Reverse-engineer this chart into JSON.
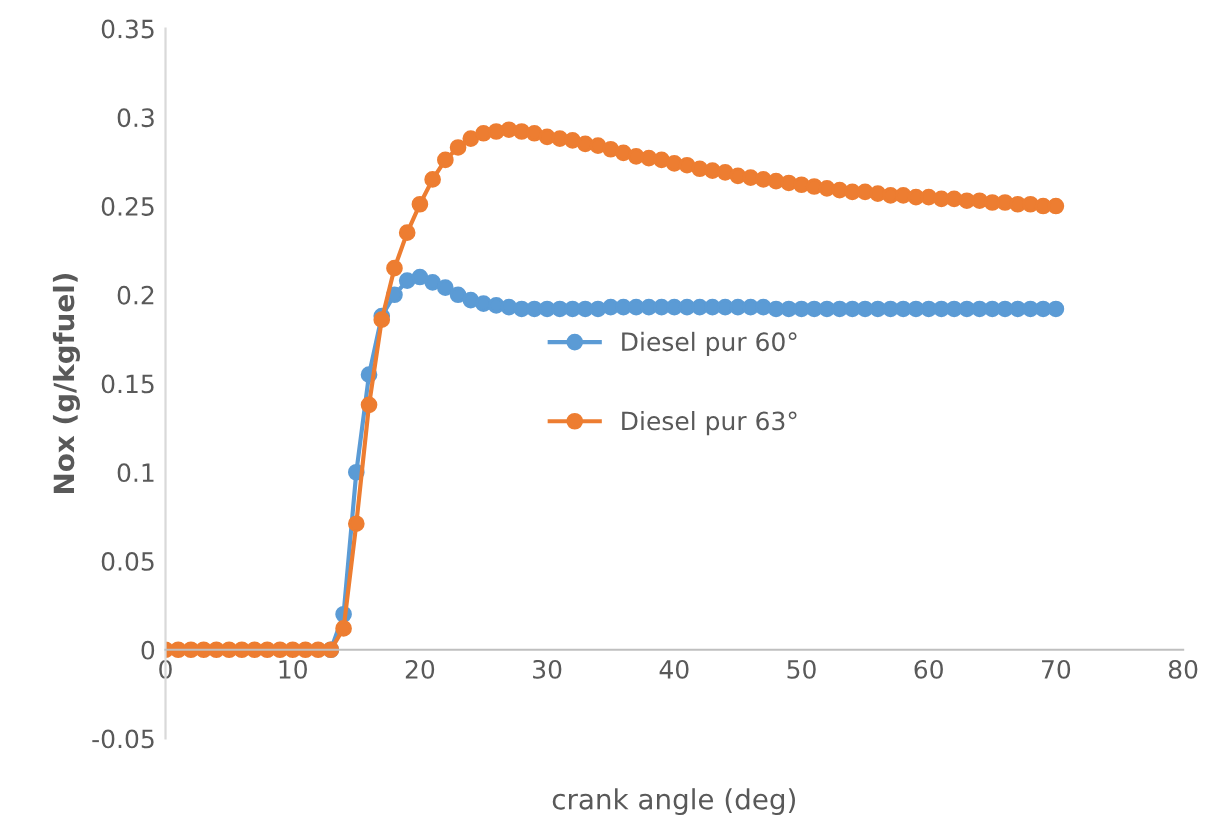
{
  "chart_data": {
    "type": "line",
    "xlabel": "crank angle (deg)",
    "ylabel": "Nox (g/kgfuel)",
    "x": [
      0,
      1,
      2,
      3,
      4,
      5,
      6,
      7,
      8,
      9,
      10,
      11,
      12,
      13,
      14,
      15,
      16,
      17,
      18,
      19,
      20,
      21,
      22,
      23,
      24,
      25,
      26,
      27,
      28,
      29,
      30,
      31,
      32,
      33,
      34,
      35,
      36,
      37,
      38,
      39,
      40,
      41,
      42,
      43,
      44,
      45,
      46,
      47,
      48,
      49,
      50,
      51,
      52,
      53,
      54,
      55,
      56,
      57,
      58,
      59,
      60,
      61,
      62,
      63,
      64,
      65,
      66,
      67,
      68,
      69,
      70
    ],
    "series": [
      {
        "name": "Diesel pur 60°",
        "color": "#5b9bd5",
        "values": [
          null,
          null,
          null,
          null,
          null,
          null,
          null,
          null,
          null,
          null,
          null,
          null,
          null,
          0,
          0.02,
          0.1,
          0.155,
          0.188,
          0.2,
          0.208,
          0.21,
          0.207,
          0.204,
          0.2,
          0.197,
          0.195,
          0.194,
          0.193,
          0.192,
          0.192,
          0.192,
          0.192,
          0.192,
          0.192,
          0.192,
          0.193,
          0.193,
          0.193,
          0.193,
          0.193,
          0.193,
          0.193,
          0.193,
          0.193,
          0.193,
          0.193,
          0.193,
          0.193,
          0.192,
          0.192,
          0.192,
          0.192,
          0.192,
          0.192,
          0.192,
          0.192,
          0.192,
          0.192,
          0.192,
          0.192,
          0.192,
          0.192,
          0.192,
          0.192,
          0.192,
          0.192,
          0.192,
          0.192,
          0.192,
          0.192,
          0.192
        ]
      },
      {
        "name": "Diesel pur 63°",
        "color": "#ed7d31",
        "values": [
          0,
          0,
          0,
          0,
          0,
          0,
          0,
          0,
          0,
          0,
          0,
          0,
          0,
          0,
          0.012,
          0.071,
          0.138,
          0.186,
          0.215,
          0.235,
          0.251,
          0.265,
          0.276,
          0.283,
          0.288,
          0.291,
          0.292,
          0.293,
          0.292,
          0.291,
          0.289,
          0.288,
          0.287,
          0.285,
          0.284,
          0.282,
          0.28,
          0.278,
          0.277,
          0.276,
          0.274,
          0.273,
          0.271,
          0.27,
          0.269,
          0.267,
          0.266,
          0.265,
          0.264,
          0.263,
          0.262,
          0.261,
          0.26,
          0.259,
          0.258,
          0.258,
          0.257,
          0.256,
          0.256,
          0.255,
          0.255,
          0.254,
          0.254,
          0.253,
          0.253,
          0.252,
          0.252,
          0.251,
          0.251,
          0.25,
          0.25
        ]
      }
    ],
    "xlim": [
      0,
      80
    ],
    "xticks": [
      0,
      10,
      20,
      30,
      40,
      50,
      60,
      70,
      80
    ],
    "ylim": [
      -0.05,
      0.35
    ],
    "yticks": [
      -0.05,
      0,
      0.05,
      0.1,
      0.15,
      0.2,
      0.25,
      0.3,
      0.35
    ],
    "marker": "circle",
    "line_style": "solid",
    "legend": "center",
    "grid": false
  }
}
